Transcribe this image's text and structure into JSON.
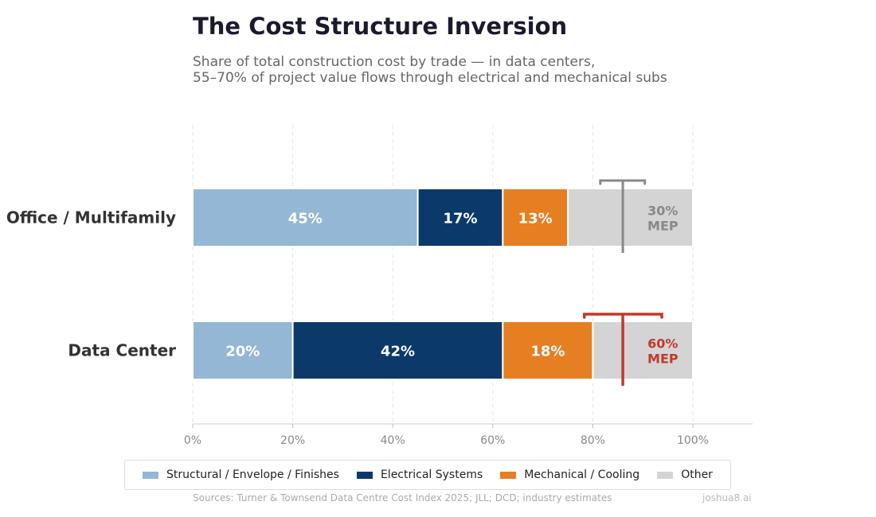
{
  "chart_data": {
    "type": "bar",
    "orientation": "horizontal",
    "stacked": true,
    "title": "The Cost Structure Inversion",
    "subtitle": [
      "Share of total construction cost by trade — in data centers,",
      "55–70% of project value flows through electrical and mechanical subs"
    ],
    "categories": [
      "Office / Multifamily",
      "Data Center"
    ],
    "series": [
      {
        "name": "Structural / Envelope / Finishes",
        "color": "#93b7d4",
        "values": [
          45,
          20
        ],
        "labels": [
          "45%",
          "20%"
        ]
      },
      {
        "name": "Electrical Systems",
        "color": "#0b3a6a",
        "values": [
          17,
          42
        ],
        "labels": [
          "17%",
          "42%"
        ]
      },
      {
        "name": "Mechanical / Cooling",
        "color": "#e67e22",
        "values": [
          13,
          18
        ],
        "labels": [
          "13%",
          "18%"
        ]
      },
      {
        "name": "Other",
        "color": "#d4d4d4",
        "values": [
          25,
          20
        ],
        "labels": [
          "",
          ""
        ]
      }
    ],
    "annotations": [
      {
        "category": "Office / Multifamily",
        "line1": "30%",
        "line2": "MEP",
        "color": "#888888"
      },
      {
        "category": "Data Center",
        "line1": "60%",
        "line2": "MEP",
        "color": "#c0392b"
      }
    ],
    "xlim": [
      0,
      112
    ],
    "xticks": [
      0,
      20,
      40,
      60,
      80,
      100
    ],
    "xtick_labels": [
      "0%",
      "20%",
      "40%",
      "60%",
      "80%",
      "100%"
    ],
    "grid": "vertical dashed",
    "legend_position": "bottom"
  },
  "footer": {
    "source": "Sources: Turner & Townsend Data Centre Cost Index 2025; JLL; DCD; industry estimates",
    "brand": "joshua8.ai"
  }
}
